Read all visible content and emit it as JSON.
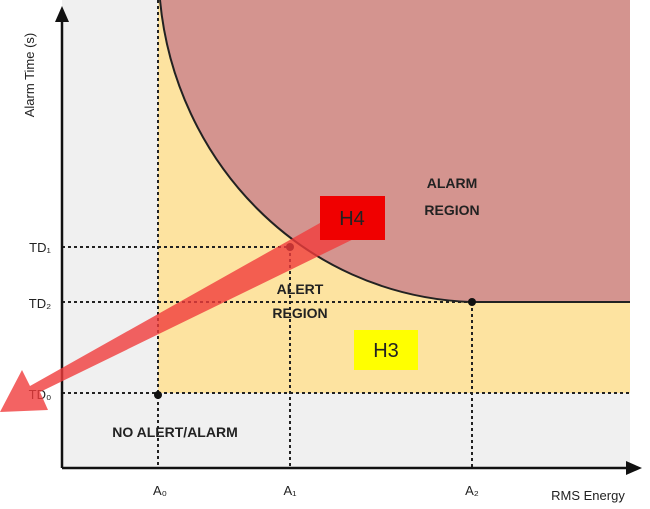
{
  "axes": {
    "y_label": "Alarm Time (s)",
    "x_label": "RMS Energy",
    "y_ticks": [
      "TD₁",
      "TD₂",
      "TD₀"
    ],
    "x_ticks": [
      "A₀",
      "A₁",
      "A₂"
    ]
  },
  "regions": {
    "alarm": [
      "ALARM",
      "REGION"
    ],
    "alert": [
      "ALERT",
      "REGION"
    ],
    "none": "NO ALERT/ALARM"
  },
  "annotations": {
    "h4": "H4",
    "h3": "H3"
  }
}
